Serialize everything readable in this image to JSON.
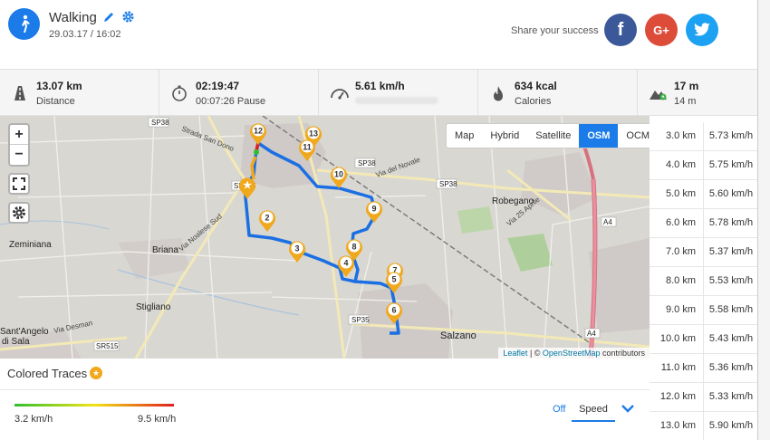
{
  "activity": {
    "title": "Walking",
    "date": "29.03.17 / 16:02",
    "icon": "walking-person-icon",
    "accent": "#1b7be8"
  },
  "share": {
    "label": "Share your success",
    "facebook": "f",
    "google": "G+",
    "twitter": "twitter-bird-icon"
  },
  "stats": [
    {
      "icon": "road-icon",
      "value": "13.07 km",
      "label": "Distance"
    },
    {
      "icon": "stopwatch-icon",
      "value": "02:19:47",
      "label": "00:07:26 Pause"
    },
    {
      "icon": "speedometer-icon",
      "value": "5.61 km/h",
      "label": ""
    },
    {
      "icon": "flame-icon",
      "value": "634 kcal",
      "label": "Calories"
    },
    {
      "icon": "elevation-icon",
      "value": "17 m",
      "label": "14 m"
    }
  ],
  "map": {
    "zoom_in": "+",
    "zoom_out": "−",
    "types": [
      "Map",
      "Hybrid",
      "Satellite",
      "OSM",
      "OCM"
    ],
    "active_type": "OSM",
    "attribution_leaflet": "Leaflet",
    "attribution_sep": " | © ",
    "attribution_osm": "OpenStreetMap",
    "attribution_tail": " contributors",
    "places": [
      "Zeminiana",
      "Briana",
      "Stigliano",
      "Robegano",
      "Salzano",
      "Sant'Angelo",
      "di Sala",
      "Strada San Dono",
      "SP38",
      "SP35",
      "SR515",
      "Via Noalese Sud",
      "Via del Novale",
      "Via 25 Aprile",
      "Via Desman",
      "A4"
    ],
    "markers": [
      "2",
      "3",
      "4",
      "5",
      "6",
      "7",
      "8",
      "9",
      "10",
      "11",
      "12",
      "13"
    ]
  },
  "colored_traces": {
    "title": "Colored Traces",
    "min": "3.2 km/h",
    "max": "9.5 km/h",
    "off_label": "Off",
    "metric": "Speed",
    "gradient": [
      "#2fbf2f",
      "#f3e316",
      "#e01e1e"
    ]
  },
  "splits": [
    {
      "km": "3.0 km",
      "speed": "5.73 km/h"
    },
    {
      "km": "4.0 km",
      "speed": "5.75 km/h"
    },
    {
      "km": "5.0 km",
      "speed": "5.60 km/h"
    },
    {
      "km": "6.0 km",
      "speed": "5.78 km/h"
    },
    {
      "km": "7.0 km",
      "speed": "5.37 km/h"
    },
    {
      "km": "8.0 km",
      "speed": "5.53 km/h"
    },
    {
      "km": "9.0 km",
      "speed": "5.58 km/h"
    },
    {
      "km": "10.0 km",
      "speed": "5.43 km/h"
    },
    {
      "km": "11.0 km",
      "speed": "5.36 km/h"
    },
    {
      "km": "12.0 km",
      "speed": "5.33 km/h"
    },
    {
      "km": "13.0 km",
      "speed": "5.90 km/h"
    }
  ]
}
